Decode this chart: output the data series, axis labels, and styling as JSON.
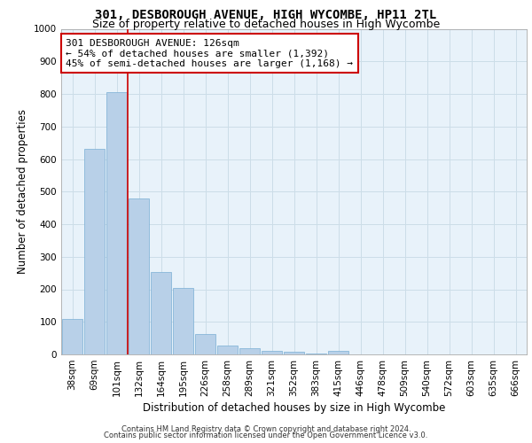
{
  "title_line1": "301, DESBOROUGH AVENUE, HIGH WYCOMBE, HP11 2TL",
  "title_line2": "Size of property relative to detached houses in High Wycombe",
  "xlabel": "Distribution of detached houses by size in High Wycombe",
  "ylabel": "Number of detached properties",
  "categories": [
    "38sqm",
    "69sqm",
    "101sqm",
    "132sqm",
    "164sqm",
    "195sqm",
    "226sqm",
    "258sqm",
    "289sqm",
    "321sqm",
    "352sqm",
    "383sqm",
    "415sqm",
    "446sqm",
    "478sqm",
    "509sqm",
    "540sqm",
    "572sqm",
    "603sqm",
    "635sqm",
    "666sqm"
  ],
  "values": [
    110,
    630,
    805,
    480,
    253,
    205,
    62,
    27,
    18,
    12,
    8,
    3,
    12,
    0,
    0,
    0,
    0,
    0,
    0,
    0,
    0
  ],
  "bar_color": "#b8d0e8",
  "bar_edge_color": "#7aafd4",
  "marker_label": "301 DESBOROUGH AVENUE: 126sqm",
  "marker_note1": "← 54% of detached houses are smaller (1,392)",
  "marker_note2": "45% of semi-detached houses are larger (1,168) →",
  "annotation_box_color": "#cc0000",
  "vline_color": "#cc0000",
  "grid_color": "#ccdde8",
  "background_color": "#e8f2fa",
  "ylim": [
    0,
    1000
  ],
  "yticks": [
    0,
    100,
    200,
    300,
    400,
    500,
    600,
    700,
    800,
    900,
    1000
  ],
  "footer1": "Contains HM Land Registry data © Crown copyright and database right 2024.",
  "footer2": "Contains public sector information licensed under the Open Government Licence v3.0.",
  "title_fontsize": 10,
  "subtitle_fontsize": 9,
  "axis_label_fontsize": 8.5,
  "tick_fontsize": 7.5,
  "annotation_fontsize": 8,
  "footer_fontsize": 6
}
